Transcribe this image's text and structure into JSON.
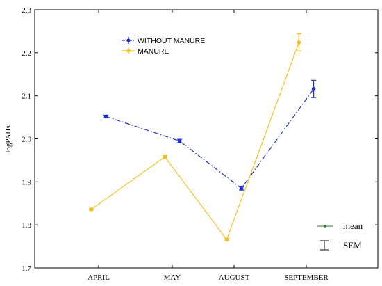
{
  "chart_data": {
    "type": "line",
    "categories": [
      "APRIL",
      "MAY",
      "AUGUST",
      "SEPTEMBER"
    ],
    "ylabel": "logPAHs",
    "xlabel": "",
    "ylim": [
      1.7,
      2.3
    ],
    "yticks": [
      "1.7",
      "1.8",
      "1.9",
      "2.0",
      "2.1",
      "2.2",
      "2.3"
    ],
    "grid": false,
    "legend_position": "top-left",
    "series": [
      {
        "name": "WITHOUT MANURE",
        "color": "#1f2fd6",
        "line_style": "dash-dot",
        "x_offset": 0.1,
        "values": [
          2.052,
          1.995,
          1.885,
          2.116
        ],
        "sem": [
          0.003,
          0.004,
          0.004,
          0.02
        ]
      },
      {
        "name": "MANURE",
        "color": "#f5c124",
        "line_style": "solid",
        "x_offset": -0.1,
        "values": [
          1.836,
          1.958,
          1.766,
          2.224
        ],
        "sem": [
          0.002,
          0.003,
          0.003,
          0.02
        ]
      }
    ],
    "key": {
      "mean_label": "mean",
      "sem_label": "SEM"
    }
  }
}
